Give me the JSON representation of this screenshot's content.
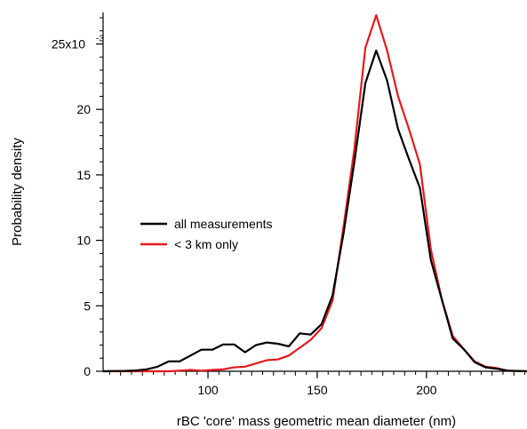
{
  "chart_data": {
    "type": "line",
    "xlabel": "rBC 'core' mass geometric mean diameter (nm)",
    "ylabel": "Probability density",
    "y_multiplier_base": "25x10",
    "y_multiplier_exp": "-3",
    "xlim": [
      52,
      246
    ],
    "ylim": [
      0,
      27
    ],
    "x_ticks": [
      100,
      150,
      200
    ],
    "y_ticks": [
      0,
      5,
      10,
      15,
      20,
      25
    ],
    "y_tick_labels": [
      "0",
      "5",
      "10",
      "15",
      "20",
      "25x10"
    ],
    "grid": false,
    "legend_position": "center-left",
    "x": [
      52,
      57,
      62,
      67,
      72,
      77,
      82,
      87,
      92,
      97,
      102,
      107,
      112,
      117,
      122,
      127,
      132,
      137,
      142,
      147,
      152,
      157,
      162,
      167,
      172,
      177,
      182,
      187,
      192,
      197,
      202,
      207,
      212,
      217,
      222,
      227,
      232,
      237,
      242,
      246
    ],
    "series": [
      {
        "name": "all measurements",
        "color": "#000000",
        "values": [
          0.0,
          0.02,
          0.03,
          0.06,
          0.15,
          0.35,
          0.75,
          0.75,
          1.2,
          1.65,
          1.65,
          2.05,
          2.05,
          1.45,
          2.0,
          2.2,
          2.1,
          1.9,
          2.9,
          2.8,
          3.6,
          5.8,
          10.5,
          16.0,
          22.0,
          24.5,
          22.2,
          18.5,
          16.2,
          14.0,
          8.5,
          5.5,
          2.5,
          1.7,
          0.7,
          0.3,
          0.2,
          0.05,
          0.02,
          0.0
        ]
      },
      {
        "name": "< 3 km only",
        "color": "#e41a1c",
        "values": [
          0.0,
          0.0,
          0.0,
          0.0,
          0.0,
          0.0,
          0.0,
          0.05,
          0.1,
          0.05,
          0.1,
          0.15,
          0.3,
          0.35,
          0.6,
          0.85,
          0.9,
          1.2,
          1.8,
          2.4,
          3.3,
          5.4,
          11.0,
          17.0,
          24.7,
          27.2,
          24.5,
          21.0,
          18.5,
          15.8,
          9.3,
          5.5,
          2.7,
          1.7,
          0.75,
          0.35,
          0.25,
          0.05,
          0.02,
          0.0
        ]
      }
    ]
  }
}
